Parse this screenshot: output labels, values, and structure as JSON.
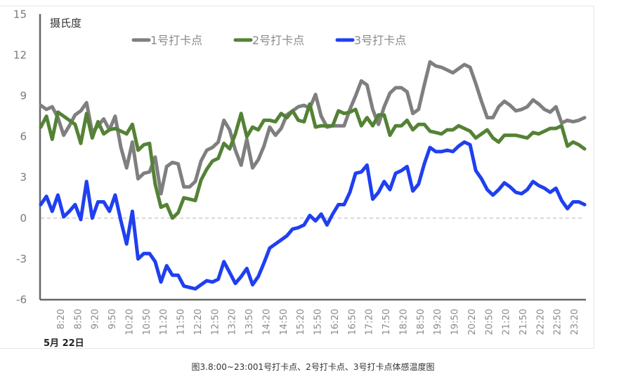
{
  "chart_data": {
    "type": "line",
    "title": "",
    "ylabel": "摄氏度",
    "xlabel": "5月 22日",
    "ylim": [
      -6,
      15
    ],
    "yticks": [
      15,
      12,
      9,
      6,
      3,
      0,
      -3,
      -6
    ],
    "reference_line": {
      "y": 0,
      "style": "dashed"
    },
    "grid": false,
    "legend_position": "top",
    "xtick_labels": [
      "8:20",
      "8:50",
      "9:20",
      "9:50",
      "10:20",
      "10:50",
      "11:20",
      "11:50",
      "12:20",
      "12:50",
      "13:20",
      "13:50",
      "14:20",
      "14:50",
      "15:20",
      "15:50",
      "16:20",
      "16:50",
      "17:20",
      "17:50",
      "18:20",
      "18:50",
      "19:20",
      "19:50",
      "20:20",
      "20:50",
      "21:20",
      "21:50",
      "22:20",
      "22:50",
      "23:20"
    ],
    "x": [
      "8:00",
      "8:10",
      "8:20",
      "8:30",
      "8:40",
      "8:50",
      "9:00",
      "9:10",
      "9:20",
      "9:30",
      "9:40",
      "9:50",
      "10:00",
      "10:10",
      "10:20",
      "10:30",
      "10:40",
      "10:50",
      "11:00",
      "11:10",
      "11:20",
      "11:30",
      "11:40",
      "11:50",
      "12:00",
      "12:10",
      "12:20",
      "12:30",
      "12:40",
      "12:50",
      "13:00",
      "13:10",
      "13:20",
      "13:30",
      "13:40",
      "13:50",
      "14:00",
      "14:10",
      "14:20",
      "14:30",
      "14:40",
      "14:50",
      "15:00",
      "15:10",
      "15:20",
      "15:30",
      "15:40",
      "15:50",
      "16:00",
      "16:10",
      "16:20",
      "16:30",
      "16:40",
      "16:50",
      "17:00",
      "17:10",
      "17:20",
      "17:30",
      "17:40",
      "17:50",
      "18:00",
      "18:10",
      "18:20",
      "18:30",
      "18:40",
      "18:50",
      "19:00",
      "19:10",
      "19:20",
      "19:30",
      "19:40",
      "19:50",
      "20:00",
      "20:10",
      "20:20",
      "20:30",
      "20:40",
      "20:50",
      "21:00",
      "21:10",
      "21:20",
      "21:30",
      "21:40",
      "21:50",
      "22:00",
      "22:10",
      "22:20",
      "22:30",
      "22:40",
      "22:50",
      "23:00",
      "23:10",
      "23:20",
      "23:30",
      "23:40",
      "23:50"
    ],
    "series": [
      {
        "name": "1号打卡点",
        "color": "#7f7f7f",
        "values": [
          8.3,
          8.0,
          8.2,
          7.4,
          6.1,
          6.8,
          7.6,
          7.9,
          8.5,
          6.3,
          6.8,
          7.3,
          6.5,
          7.5,
          5.2,
          3.7,
          5.6,
          2.9,
          3.3,
          3.4,
          4.5,
          1.8,
          3.8,
          4.1,
          4.0,
          2.3,
          2.3,
          2.7,
          4.2,
          5.0,
          5.2,
          5.6,
          7.2,
          6.5,
          5.0,
          3.9,
          5.8,
          3.7,
          4.3,
          5.3,
          6.7,
          6.1,
          6.6,
          7.6,
          7.9,
          8.2,
          8.3,
          8.1,
          9.1,
          7.5,
          6.7,
          6.8,
          6.8,
          6.8,
          8.0,
          9.0,
          10.1,
          9.8,
          8.0,
          6.9,
          8.2,
          9.2,
          9.6,
          9.6,
          9.3,
          7.7,
          8.0,
          9.8,
          11.5,
          11.2,
          11.1,
          10.9,
          10.7,
          11.0,
          11.3,
          11.1,
          9.9,
          8.6,
          7.4,
          7.4,
          8.2,
          8.6,
          8.3,
          7.9,
          8.0,
          8.2,
          8.7,
          8.4,
          8.0,
          7.8,
          8.2,
          7.0,
          7.2,
          7.1,
          7.2,
          7.4
        ]
      },
      {
        "name": "2号打卡点",
        "color": "#548235",
        "values": [
          6.7,
          7.5,
          5.8,
          7.8,
          7.5,
          7.2,
          6.9,
          5.5,
          7.7,
          5.9,
          7.1,
          6.2,
          6.5,
          6.6,
          6.4,
          6.2,
          6.9,
          5.0,
          5.4,
          5.5,
          2.5,
          0.8,
          1.0,
          0.0,
          0.4,
          1.5,
          1.4,
          1.3,
          2.8,
          3.6,
          4.2,
          4.4,
          5.5,
          5.1,
          6.2,
          7.7,
          6.0,
          6.7,
          6.5,
          7.2,
          7.2,
          7.1,
          7.7,
          7.4,
          7.9,
          7.2,
          7.1,
          8.4,
          6.7,
          6.8,
          6.8,
          6.8,
          7.9,
          7.7,
          7.8,
          8.0,
          6.8,
          7.4,
          6.8,
          7.6,
          7.6,
          6.1,
          6.8,
          6.8,
          7.2,
          6.5,
          6.9,
          6.9,
          6.4,
          6.3,
          6.2,
          6.5,
          6.5,
          6.8,
          6.6,
          6.4,
          5.9,
          6.2,
          6.5,
          5.9,
          5.6,
          6.1,
          6.1,
          6.1,
          6.0,
          5.9,
          6.3,
          6.2,
          6.4,
          6.6,
          6.6,
          6.8,
          5.3,
          5.6,
          5.4,
          5.1
        ]
      },
      {
        "name": "3号打卡点",
        "color": "#1f3ff0",
        "values": [
          1.0,
          1.6,
          0.5,
          1.7,
          0.1,
          0.5,
          1.0,
          -0.1,
          2.7,
          0.0,
          1.2,
          1.2,
          0.5,
          1.7,
          -0.2,
          -1.9,
          0.5,
          -3.0,
          -2.6,
          -2.6,
          -3.2,
          -4.7,
          -3.5,
          -4.2,
          -4.2,
          -5.0,
          -5.1,
          -5.2,
          -4.9,
          -4.6,
          -4.7,
          -4.5,
          -3.2,
          -4.0,
          -4.8,
          -4.3,
          -3.7,
          -4.9,
          -4.3,
          -3.3,
          -2.2,
          -1.9,
          -1.6,
          -1.3,
          -0.8,
          -0.7,
          -0.5,
          0.2,
          -0.2,
          0.3,
          -0.5,
          0.3,
          1.0,
          1.0,
          1.9,
          3.3,
          3.4,
          3.9,
          1.4,
          1.9,
          2.7,
          2.1,
          3.3,
          3.5,
          3.8,
          2.0,
          2.5,
          4.0,
          5.2,
          4.9,
          4.9,
          5.0,
          4.9,
          5.3,
          5.6,
          5.4,
          3.5,
          2.9,
          2.1,
          1.7,
          2.1,
          2.6,
          2.3,
          1.9,
          1.8,
          2.1,
          2.7,
          2.4,
          2.2,
          1.9,
          2.2,
          1.3,
          0.7,
          1.2,
          1.2,
          1.0
        ]
      }
    ]
  },
  "caption": "图3.8:00~23:001号打卡点、2号打卡点、3号打卡点体感温度图"
}
